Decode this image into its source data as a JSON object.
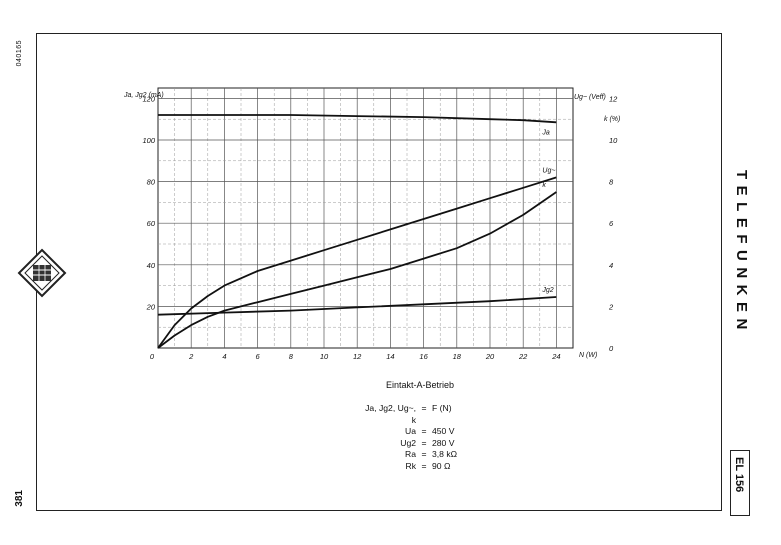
{
  "document_code": "040165",
  "page_number": "381",
  "brand": "TELEFUNKEN",
  "tube_type": "EL 156",
  "caption": "Eintakt-A-Betrieb",
  "formula": [
    {
      "lhs": "Ja, Jg2, Ug~, k",
      "rhs": "F (N)"
    },
    {
      "lhs": "Ua",
      "rhs": "450 V"
    },
    {
      "lhs": "Ug2",
      "rhs": "280 V"
    },
    {
      "lhs": "Ra",
      "rhs": "3,8 kΩ"
    },
    {
      "lhs": "Rk",
      "rhs": "90 Ω"
    }
  ],
  "chart_data": {
    "type": "line",
    "xlabel": "N (W)",
    "ylabel_left": "Ja, Jg2 (mA)",
    "ylabel_right_top": "Ug~ (Veff)",
    "ylabel_right_bottom": "k (%)",
    "xlim": [
      0,
      25
    ],
    "ylim_left": [
      0,
      125
    ],
    "ylim_right": [
      0,
      12.5
    ],
    "x_ticks": [
      "2",
      "4",
      "6",
      "8",
      "10",
      "12",
      "14",
      "16",
      "18",
      "20",
      "22",
      "24"
    ],
    "x_origin_label": "0",
    "y_left_ticks": [
      "20",
      "40",
      "60",
      "80",
      "100",
      "120"
    ],
    "y_right_ticks": [
      "0",
      "2",
      "4",
      "6",
      "8",
      "10",
      "12"
    ],
    "grid": true,
    "series": [
      {
        "name": "Ja",
        "axis": "left",
        "x": [
          0,
          4,
          8,
          12,
          16,
          20,
          22,
          24
        ],
        "y": [
          112,
          112,
          112,
          111.5,
          111,
          110,
          109.5,
          108.5
        ]
      },
      {
        "name": "Ug~",
        "axis": "right",
        "x": [
          0,
          1,
          2,
          3,
          4,
          6,
          8,
          10,
          12,
          14,
          16,
          18,
          20,
          22,
          24
        ],
        "y": [
          0,
          1.1,
          1.9,
          2.5,
          3,
          3.7,
          4.2,
          4.7,
          5.2,
          5.7,
          6.2,
          6.7,
          7.2,
          7.7,
          8.2
        ]
      },
      {
        "name": "k",
        "axis": "right",
        "x": [
          0,
          1,
          2,
          3,
          4,
          6,
          8,
          10,
          12,
          14,
          16,
          18,
          20,
          22,
          24
        ],
        "y": [
          0,
          0.6,
          1.1,
          1.5,
          1.8,
          2.2,
          2.6,
          3.0,
          3.4,
          3.8,
          4.3,
          4.8,
          5.5,
          6.4,
          7.5
        ]
      },
      {
        "name": "Jg2",
        "axis": "left",
        "x": [
          0,
          4,
          8,
          12,
          16,
          20,
          24
        ],
        "y": [
          16,
          17,
          18,
          19.5,
          21,
          22.5,
          24.5
        ]
      }
    ]
  }
}
